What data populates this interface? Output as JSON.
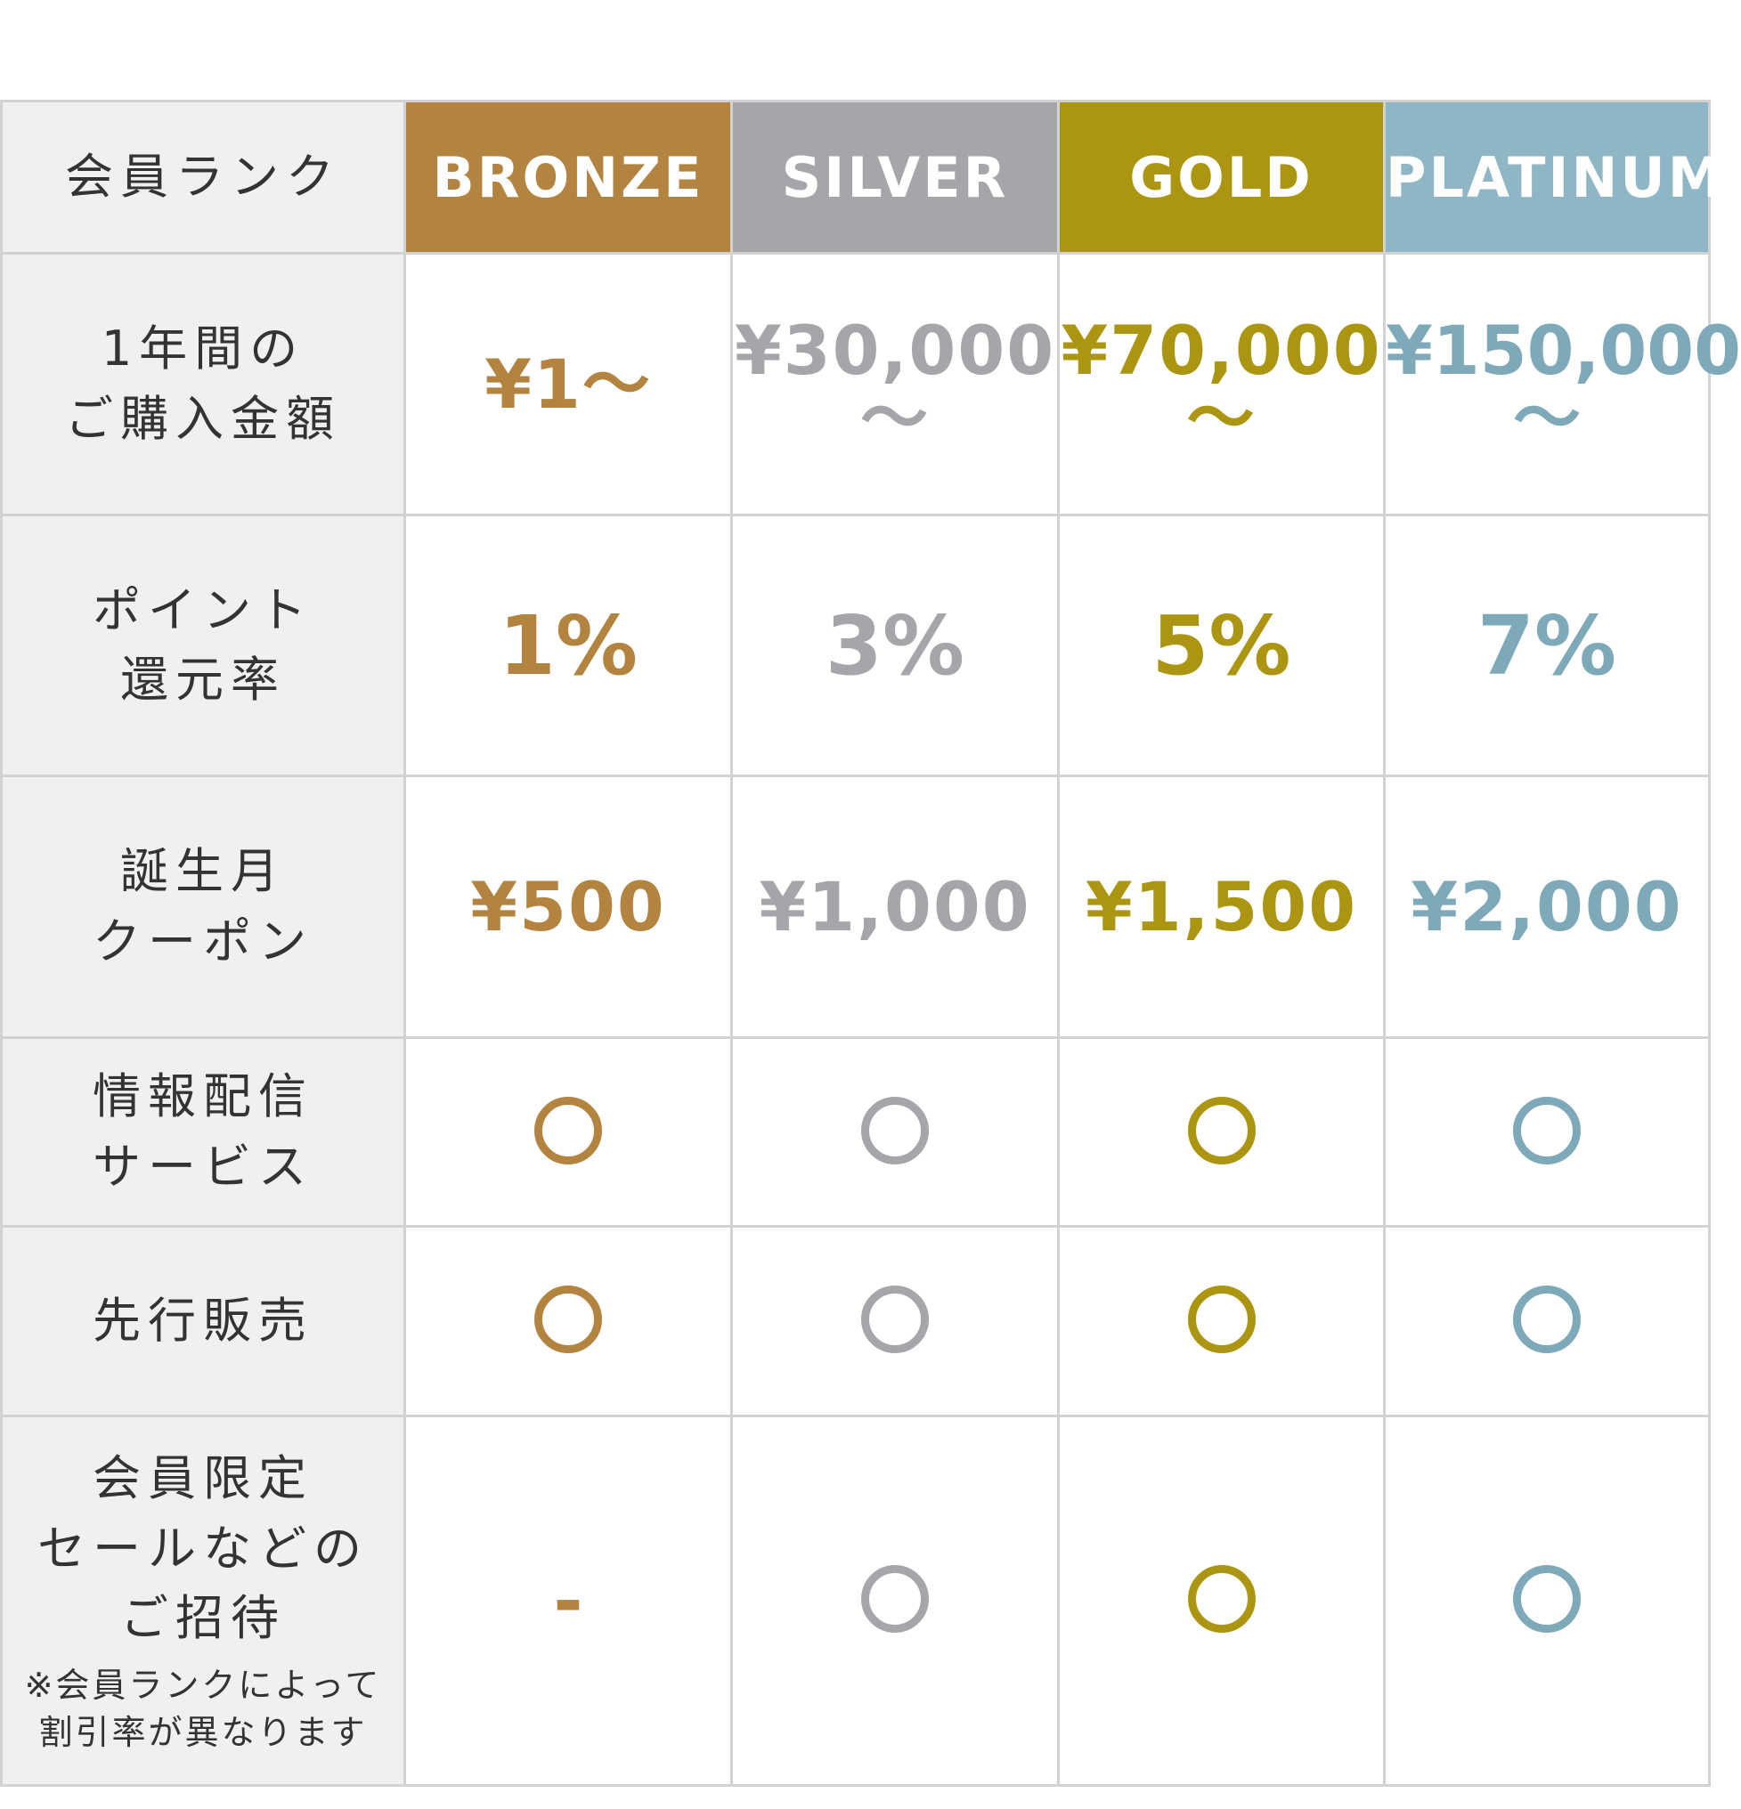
{
  "colors": {
    "bronze": "#b3843f",
    "silver": "#a5a6a9",
    "gold": "#ab9511",
    "platinum": "#8fb6c5",
    "label_bg": "#f0f0f0",
    "border": "#d2d2d2"
  },
  "header": {
    "label": "会員ランク",
    "ranks": [
      "BRONZE",
      "SILVER",
      "GOLD",
      "PLATINUM"
    ]
  },
  "rows": [
    {
      "label": [
        "1年間の",
        "ご購入金額"
      ],
      "values": [
        [
          "¥1〜"
        ],
        [
          "¥30,000",
          "〜"
        ],
        [
          "¥70,000",
          "〜"
        ],
        [
          "¥150,000",
          "〜"
        ]
      ]
    },
    {
      "label": [
        "ポイント",
        "還元率"
      ],
      "values": [
        "1%",
        "3%",
        "5%",
        "7%"
      ]
    },
    {
      "label": [
        "誕生月",
        "クーポン"
      ],
      "values": [
        "¥500",
        "¥1,000",
        "¥1,500",
        "¥2,000"
      ]
    },
    {
      "label": [
        "情報配信",
        "サービス"
      ],
      "values": [
        "circle-icon",
        "circle-icon",
        "circle-icon",
        "circle-icon"
      ]
    },
    {
      "label": [
        "先行販売"
      ],
      "values": [
        "circle-icon",
        "circle-icon",
        "circle-icon",
        "circle-icon"
      ]
    },
    {
      "label": [
        "会員限定",
        "セールなどの",
        "ご招待"
      ],
      "note": [
        "※会員ランクによって",
        "割引率が異なります"
      ],
      "values": [
        "-",
        "circle-icon",
        "circle-icon",
        "circle-icon"
      ]
    }
  ]
}
